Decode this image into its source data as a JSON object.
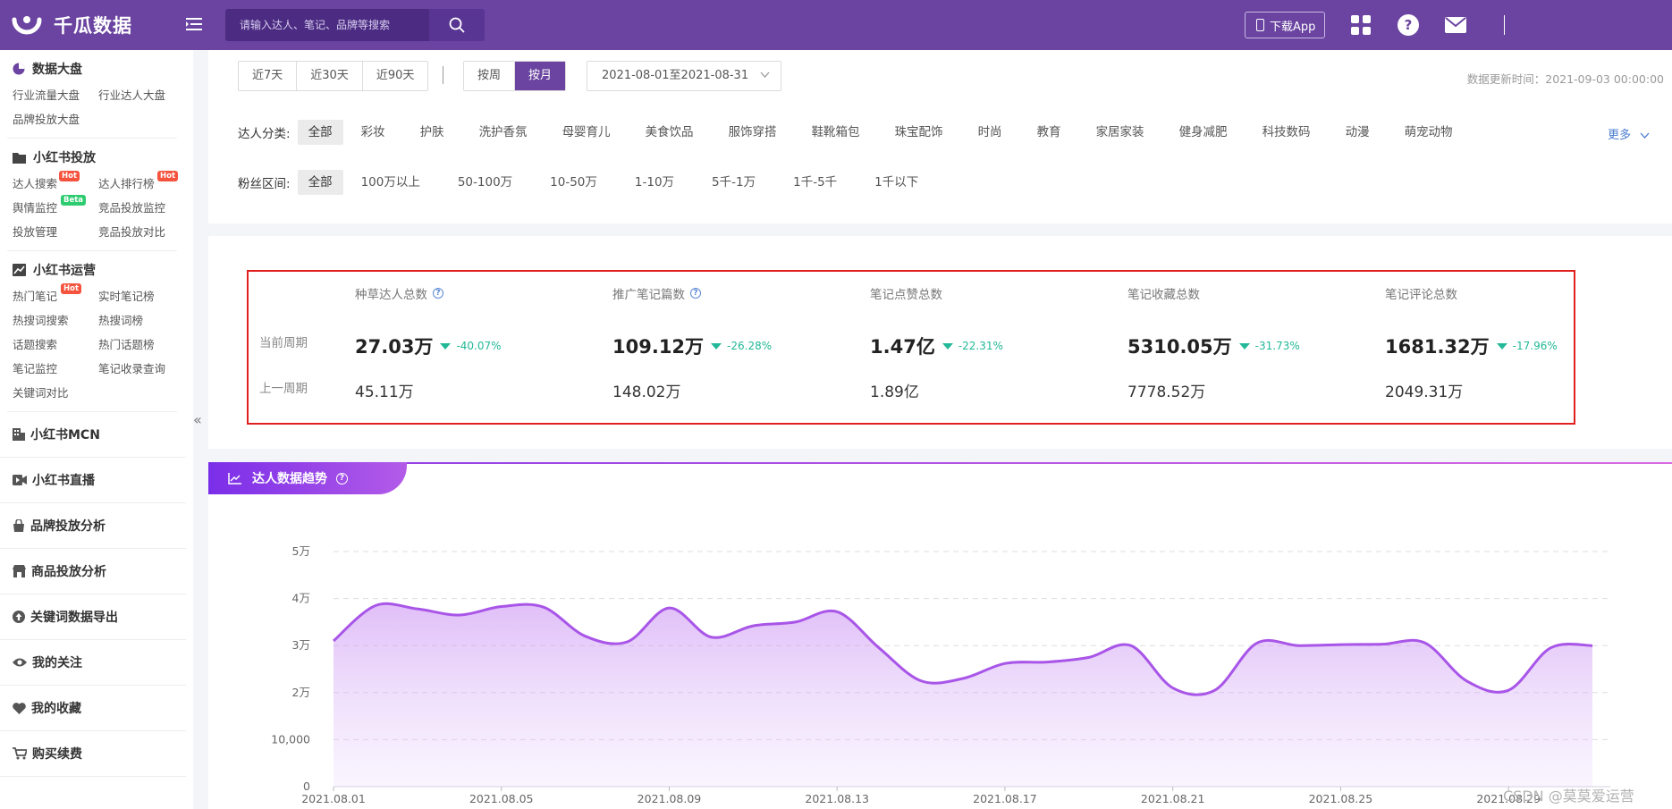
{
  "app": {
    "name": "千瓜数据"
  },
  "search": {
    "placeholder": "请输入达人、笔记、品牌等搜索"
  },
  "topbar": {
    "download_label": "下载App"
  },
  "sidebar": {
    "groups": [
      {
        "title": "数据大盘",
        "items": [
          {
            "label": "行业流量大盘"
          },
          {
            "label": "行业达人大盘"
          },
          {
            "label": "品牌投放大盘"
          }
        ]
      },
      {
        "title": "小红书投放",
        "items": [
          {
            "label": "达人搜索",
            "tag": "Hot"
          },
          {
            "label": "达人排行榜",
            "tag": "Hot"
          },
          {
            "label": "舆情监控",
            "tag": "Beta"
          },
          {
            "label": "竞品投放监控"
          },
          {
            "label": "投放管理"
          },
          {
            "label": "竞品投放对比"
          }
        ]
      },
      {
        "title": "小红书运营",
        "items": [
          {
            "label": "热门笔记",
            "tag": "Hot"
          },
          {
            "label": "实时笔记榜"
          },
          {
            "label": "热搜词搜索"
          },
          {
            "label": "热搜词榜"
          },
          {
            "label": "话题搜索"
          },
          {
            "label": "热门话题榜"
          },
          {
            "label": "笔记监控"
          },
          {
            "label": "笔记收录查询"
          },
          {
            "label": "关键词对比"
          }
        ]
      }
    ],
    "nav": [
      {
        "label": "小红书MCN",
        "icon": "building-icon"
      },
      {
        "label": "小红书直播",
        "icon": "video-icon"
      },
      {
        "label": "品牌投放分析",
        "icon": "bag-icon"
      },
      {
        "label": "商品投放分析",
        "icon": "shop-icon"
      },
      {
        "label": "关键词数据导出",
        "icon": "export-icon"
      },
      {
        "label": "我的关注",
        "icon": "eye-icon"
      },
      {
        "label": "我的收藏",
        "icon": "heart-icon"
      },
      {
        "label": "购买续费",
        "icon": "cart-icon"
      }
    ],
    "collapse_glyph": "«"
  },
  "filters": {
    "ranges": [
      "近7天",
      "近30天",
      "近90天"
    ],
    "periods": [
      "按周",
      "按月"
    ],
    "active_period": "按月",
    "date_range": "2021-08-01至2021-08-31",
    "update_time": "数据更新时间：2021-09-03 00:00:00",
    "category_label": "达人分类:",
    "categories": [
      "全部",
      "彩妆",
      "护肤",
      "洗护香氛",
      "母婴育儿",
      "美食饮品",
      "服饰穿搭",
      "鞋靴箱包",
      "珠宝配饰",
      "时尚",
      "教育",
      "家居家装",
      "健身减肥",
      "科技数码",
      "动漫",
      "萌宠动物"
    ],
    "more_label": "更多",
    "fans_label": "粉丝区间:",
    "fans_ranges": [
      "全部",
      "100万以上",
      "50-100万",
      "10-50万",
      "1-10万",
      "5千-1万",
      "1千-5千",
      "1千以下"
    ]
  },
  "stats": {
    "current_label": "当前周期",
    "previous_label": "上一周期",
    "metrics": [
      {
        "title": "种草达人总数",
        "help": true,
        "current": "27.03万",
        "change": "-40.07%",
        "previous": "45.11万"
      },
      {
        "title": "推广笔记篇数",
        "help": true,
        "current": "109.12万",
        "change": "-26.28%",
        "previous": "148.02万"
      },
      {
        "title": "笔记点赞总数",
        "help": false,
        "current": "1.47亿",
        "change": "-22.31%",
        "previous": "1.89亿"
      },
      {
        "title": "笔记收藏总数",
        "help": false,
        "current": "5310.05万",
        "change": "-31.73%",
        "previous": "7778.52万"
      },
      {
        "title": "笔记评论总数",
        "help": false,
        "current": "1681.32万",
        "change": "-17.96%",
        "previous": "2049.31万"
      }
    ],
    "trend_color": "#23b897"
  },
  "chart_title": "达人数据趋势",
  "watermark": "CSDN @莫莫爱运营",
  "chart_data": {
    "type": "area",
    "title": "达人数据趋势",
    "x": [
      "2021.08.01",
      "2021.08.02",
      "2021.08.03",
      "2021.08.04",
      "2021.08.05",
      "2021.08.06",
      "2021.08.07",
      "2021.08.08",
      "2021.08.09",
      "2021.08.10",
      "2021.08.11",
      "2021.08.12",
      "2021.08.13",
      "2021.08.14",
      "2021.08.15",
      "2021.08.16",
      "2021.08.17",
      "2021.08.18",
      "2021.08.19",
      "2021.08.20",
      "2021.08.21",
      "2021.08.22",
      "2021.08.23",
      "2021.08.24",
      "2021.08.25",
      "2021.08.26",
      "2021.08.27",
      "2021.08.28",
      "2021.08.29",
      "2021.08.30",
      "2021.08.31"
    ],
    "x_tick_labels": [
      "2021.08.01",
      "2021.08.05",
      "2021.08.09",
      "2021.08.13",
      "2021.08.17",
      "2021.08.21",
      "2021.08.25",
      "2021.08.29"
    ],
    "series": [
      {
        "values": [
          31000,
          38500,
          37800,
          36500,
          38300,
          38200,
          32000,
          30800,
          38000,
          31800,
          34200,
          35000,
          37200,
          29500,
          22500,
          23000,
          26200,
          26500,
          27500,
          30000,
          21000,
          20500,
          30500,
          30000,
          30200,
          30300,
          30600,
          22500,
          20500,
          29500,
          30000
        ]
      }
    ],
    "y_ticks": [
      0,
      10000,
      20000,
      30000,
      40000,
      50000
    ],
    "y_tick_labels": [
      "0",
      "10,000",
      "2万",
      "3万",
      "4万",
      "5万"
    ],
    "ylim": [
      0,
      50000
    ],
    "grid": true,
    "color": "#a855e8"
  }
}
